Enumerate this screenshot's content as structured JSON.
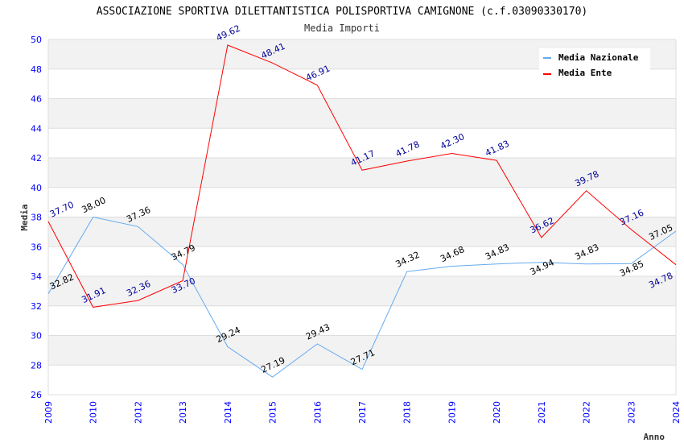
{
  "chart_data": {
    "type": "line",
    "title": "ASSOCIAZIONE SPORTIVA DILETTANTISTICA POLISPORTIVA CAMIGNONE (c.f.03090330170)",
    "subtitle": "Media Importi",
    "xlabel": "Anno",
    "ylabel": "Media",
    "ylim": [
      26,
      50
    ],
    "yticks": [
      "26",
      "28",
      "30",
      "32",
      "34",
      "36",
      "38",
      "40",
      "42",
      "44",
      "46",
      "48",
      "50"
    ],
    "categories": [
      "2009",
      "2010",
      "2012",
      "2013",
      "2014",
      "2015",
      "2016",
      "2017",
      "2018",
      "2019",
      "2020",
      "2021",
      "2022",
      "2023",
      "2024"
    ],
    "legend_position": "top-right",
    "grid": true,
    "series": [
      {
        "name": "Media Nazionale",
        "color": "#66aaee",
        "label_color": "#000000",
        "values": [
          32.82,
          38.0,
          37.36,
          34.79,
          29.24,
          27.19,
          29.43,
          27.71,
          34.32,
          34.68,
          34.83,
          34.94,
          34.83,
          34.85,
          37.05
        ],
        "labels": [
          "32.82",
          "38.00",
          "37.36",
          "34.79",
          "29.24",
          "27.19",
          "29.43",
          "27.71",
          "34.32",
          "34.68",
          "34.83",
          "34.94",
          "34.83",
          "34.85",
          "37.05"
        ]
      },
      {
        "name": "Media Ente",
        "color": "#ff0000",
        "label_color": "#000099",
        "values": [
          37.7,
          31.91,
          32.36,
          33.7,
          49.62,
          48.41,
          46.91,
          41.17,
          41.78,
          42.3,
          41.83,
          36.62,
          39.78,
          37.16,
          34.78
        ],
        "labels": [
          "37.70",
          "31.91",
          "32.36",
          "33.70",
          "49.62",
          "48.41",
          "46.91",
          "41.17",
          "41.78",
          "42.30",
          "41.83",
          "36.62",
          "39.78",
          "37.16",
          "34.78"
        ]
      }
    ]
  }
}
